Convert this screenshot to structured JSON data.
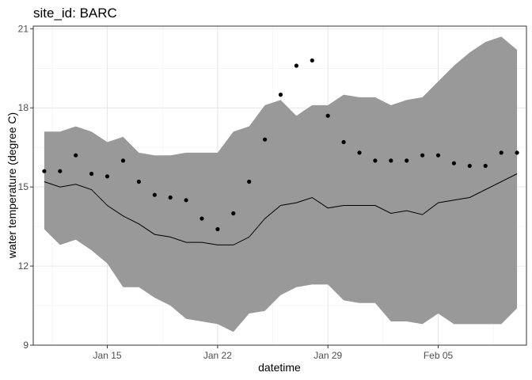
{
  "chart_data": {
    "type": "line",
    "title": "site_id: BARC",
    "xlabel": "datetime",
    "ylabel": "water temperature (degree C)",
    "x_ticks": [
      {
        "day": 15,
        "label": "Jan 15"
      },
      {
        "day": 22,
        "label": "Jan 22"
      },
      {
        "day": 29,
        "label": "Jan 29"
      },
      {
        "day": 36,
        "label": "Feb 05"
      }
    ],
    "y_ticks": [
      9,
      12,
      15,
      18,
      21
    ],
    "xlim": [
      10.3,
      41.6
    ],
    "ylim": [
      9,
      21.1
    ],
    "grid": true,
    "series": [
      {
        "name": "forecast interval",
        "kind": "ribbon",
        "color": "#999999",
        "x": [
          11,
          12,
          13,
          14,
          15,
          16,
          17,
          18,
          19,
          20,
          21,
          22,
          23,
          24,
          25,
          26,
          27,
          28,
          29,
          30,
          31,
          32,
          33,
          34,
          35,
          36,
          37,
          38,
          39,
          40,
          41
        ],
        "lower": [
          13.4,
          12.8,
          13.0,
          12.6,
          12.1,
          11.2,
          11.2,
          10.8,
          10.5,
          10.0,
          9.9,
          9.8,
          9.5,
          10.2,
          10.3,
          10.9,
          11.2,
          11.3,
          11.3,
          10.7,
          10.6,
          10.6,
          9.9,
          9.9,
          9.8,
          10.2,
          9.8,
          9.8,
          9.8,
          9.8,
          10.4
        ],
        "upper": [
          17.1,
          17.1,
          17.3,
          17.1,
          16.7,
          16.9,
          16.3,
          16.2,
          16.2,
          16.3,
          16.3,
          16.3,
          17.1,
          17.3,
          18.1,
          18.3,
          17.7,
          18.1,
          18.1,
          18.5,
          18.4,
          18.4,
          18.1,
          18.3,
          18.4,
          19.0,
          19.6,
          20.1,
          20.5,
          20.7,
          20.2
        ]
      },
      {
        "name": "forecast mean",
        "kind": "line",
        "color": "#000000",
        "x": [
          11,
          12,
          13,
          14,
          15,
          16,
          17,
          18,
          19,
          20,
          21,
          22,
          23,
          24,
          25,
          26,
          27,
          28,
          29,
          30,
          31,
          32,
          33,
          34,
          35,
          36,
          37,
          38,
          39,
          40,
          41
        ],
        "values": [
          15.2,
          15.0,
          15.1,
          14.9,
          14.3,
          13.9,
          13.6,
          13.2,
          13.1,
          12.9,
          12.9,
          12.8,
          12.8,
          13.1,
          13.8,
          14.3,
          14.4,
          14.6,
          14.2,
          14.3,
          14.3,
          14.3,
          14.0,
          14.1,
          13.95,
          14.4,
          14.5,
          14.6,
          14.9,
          15.2,
          15.5
        ]
      },
      {
        "name": "observed",
        "kind": "scatter",
        "color": "#000000",
        "x": [
          11,
          12,
          13,
          14,
          15,
          16,
          17,
          18,
          19,
          20,
          21,
          22,
          23,
          24,
          25,
          26,
          27,
          28,
          29,
          30,
          31,
          32,
          33,
          34,
          35,
          36,
          37,
          38,
          39,
          40,
          41
        ],
        "values": [
          15.6,
          15.6,
          16.2,
          15.5,
          15.4,
          16.0,
          15.2,
          14.7,
          14.6,
          14.5,
          13.8,
          13.4,
          14.0,
          15.2,
          16.8,
          18.5,
          19.6,
          19.8,
          17.7,
          16.7,
          16.3,
          16.0,
          16.0,
          16.0,
          16.2,
          16.2,
          15.9,
          15.8,
          15.8,
          16.3,
          16.3
        ]
      }
    ]
  }
}
